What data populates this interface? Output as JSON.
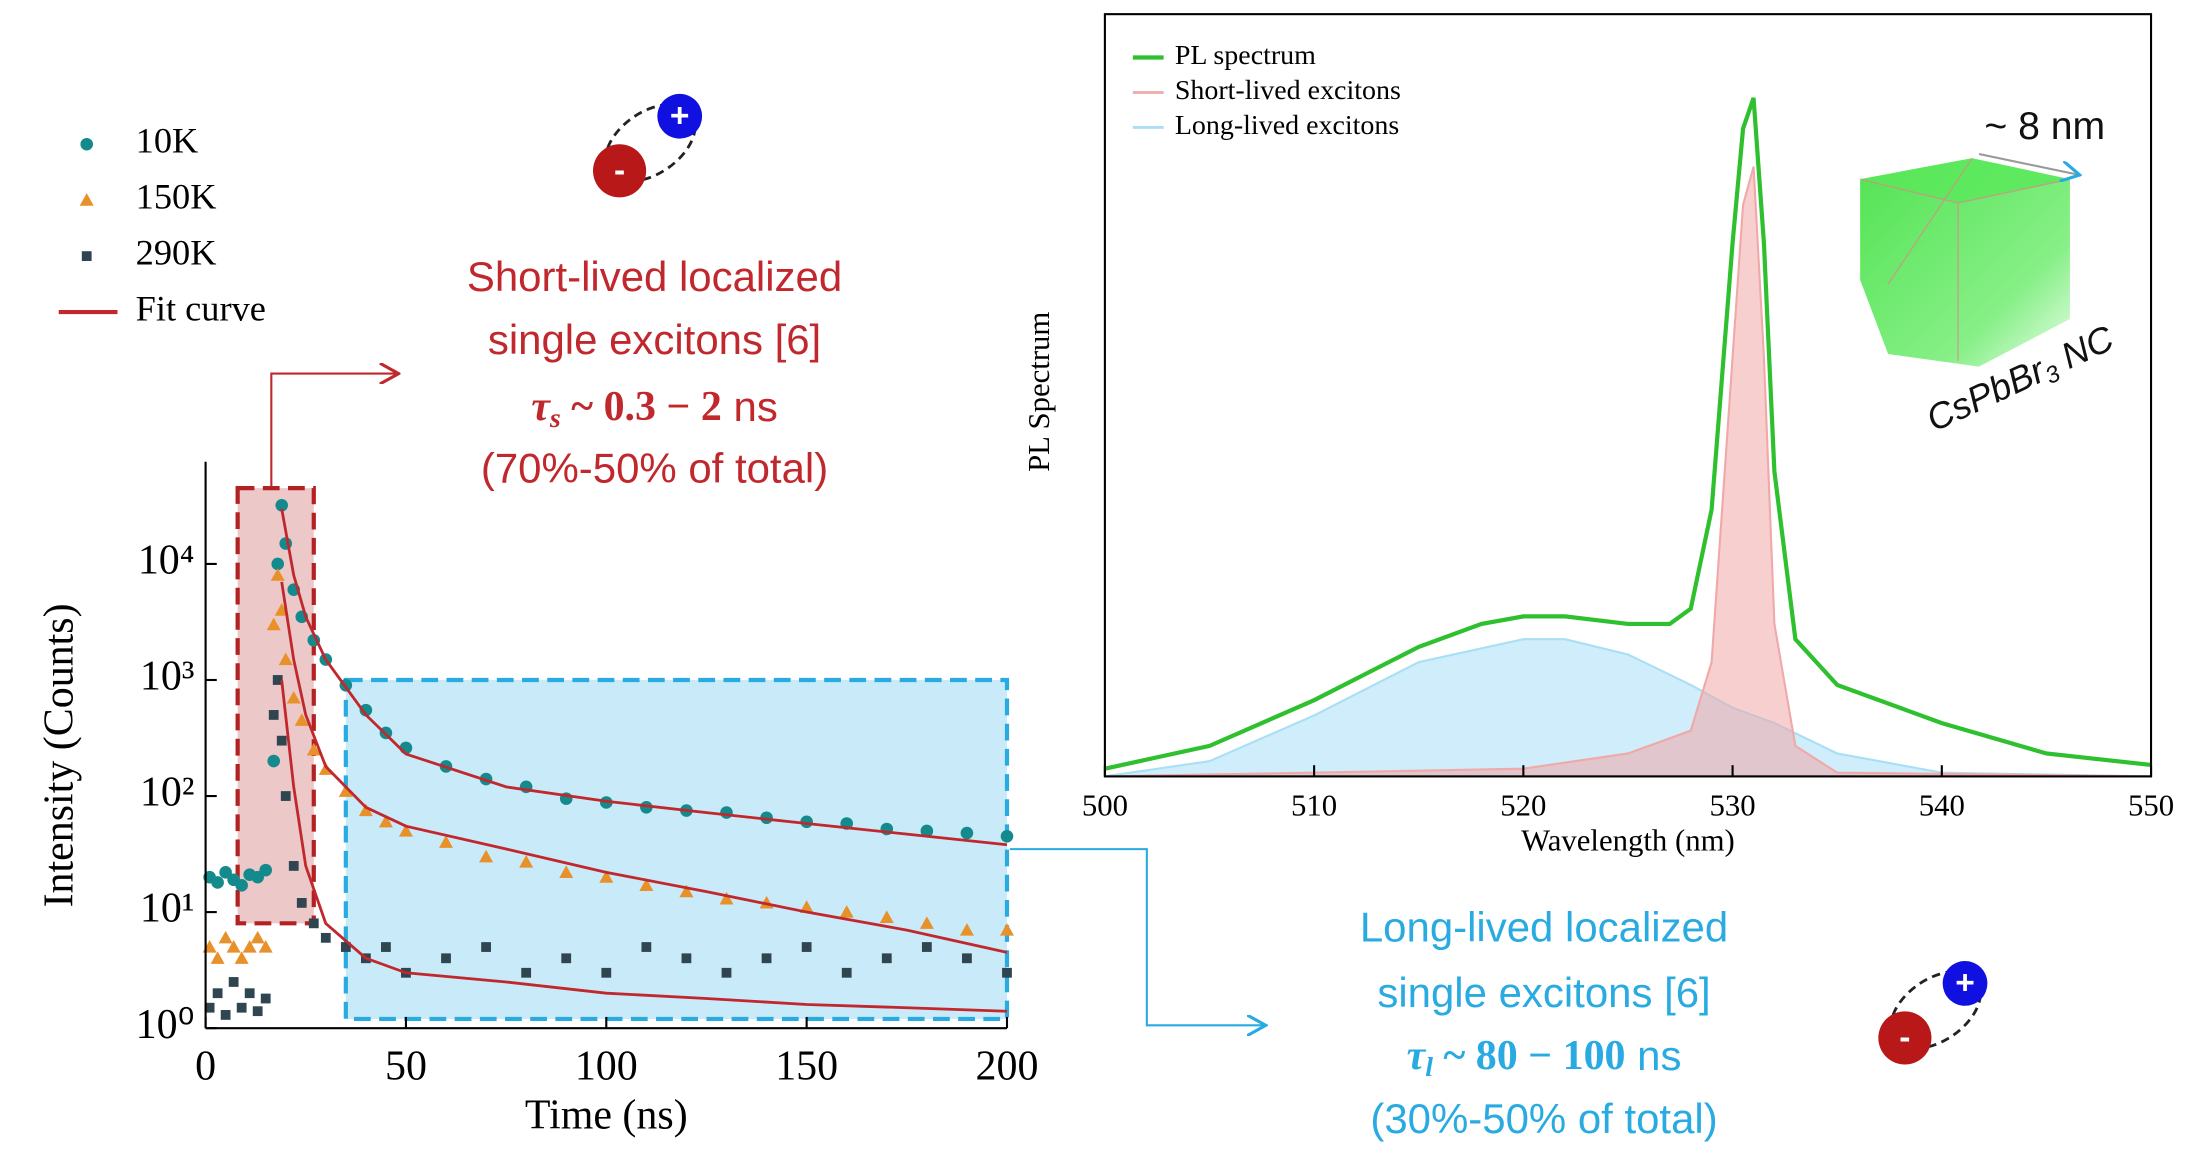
{
  "chart_data": [
    {
      "type": "scatter",
      "xlabel": "Time (ns)",
      "ylabel": "Intensity (Counts)",
      "log_y": true,
      "xlim": [
        0,
        200
      ],
      "xticks": [
        0,
        50,
        100,
        150,
        200
      ],
      "ylim": [
        1,
        76000
      ],
      "yticks": [
        {
          "value": 1,
          "label": "10⁰"
        },
        {
          "value": 10,
          "label": "10¹"
        },
        {
          "value": 100,
          "label": "10²"
        },
        {
          "value": 1000,
          "label": "10³"
        },
        {
          "value": 10000,
          "label": "10⁴"
        }
      ],
      "regions": [
        {
          "x": [
            8,
            27
          ],
          "y": [
            8,
            45000
          ],
          "color": "#b22222"
        },
        {
          "x": [
            35,
            200
          ],
          "y": [
            1.2,
            1000
          ],
          "color": "#29abe2"
        }
      ],
      "series": [
        {
          "name": "10K",
          "marker": "circle",
          "color": "#148a8c",
          "x": [
            1,
            3,
            5,
            7,
            9,
            11,
            13,
            15,
            17,
            18,
            19,
            20,
            22,
            24,
            27,
            30,
            35,
            40,
            45,
            50,
            60,
            70,
            80,
            90,
            100,
            110,
            120,
            130,
            140,
            150,
            160,
            170,
            180,
            190,
            200
          ],
          "values": [
            20,
            18,
            22,
            19,
            17,
            21,
            20,
            23,
            200,
            10000,
            32000,
            15000,
            6000,
            3500,
            2200,
            1500,
            900,
            550,
            350,
            260,
            180,
            140,
            120,
            95,
            88,
            80,
            75,
            72,
            65,
            60,
            58,
            52,
            50,
            48,
            45
          ]
        },
        {
          "name": "150K",
          "marker": "triangle",
          "color": "#e8912a",
          "x": [
            1,
            3,
            5,
            7,
            9,
            11,
            13,
            15,
            17,
            18,
            19,
            20,
            22,
            24,
            27,
            30,
            35,
            40,
            45,
            50,
            60,
            70,
            80,
            90,
            100,
            110,
            120,
            130,
            140,
            150,
            160,
            170,
            180,
            190,
            200
          ],
          "values": [
            5,
            4,
            6,
            5,
            4,
            5,
            6,
            5,
            3000,
            8000,
            4000,
            1500,
            700,
            450,
            250,
            170,
            110,
            75,
            60,
            50,
            40,
            30,
            27,
            22,
            20,
            17,
            15,
            13,
            12,
            11,
            10,
            9,
            8,
            7,
            7
          ]
        },
        {
          "name": "290K",
          "marker": "square",
          "color": "#2f4550",
          "x": [
            1,
            3,
            5,
            7,
            9,
            11,
            13,
            15,
            17,
            18,
            19,
            20,
            22,
            24,
            27,
            30,
            35,
            40,
            45,
            50,
            60,
            70,
            80,
            90,
            100,
            110,
            120,
            130,
            140,
            150,
            160,
            170,
            180,
            190,
            200
          ],
          "values": [
            1.5,
            2,
            1.3,
            2.5,
            1.5,
            2,
            1.4,
            1.8,
            500,
            1000,
            300,
            100,
            25,
            12,
            8,
            6,
            5,
            4,
            5,
            3,
            4,
            5,
            3,
            4,
            3,
            5,
            4,
            3,
            4,
            5,
            3,
            4,
            5,
            4,
            3
          ]
        },
        {
          "name": "Fit curve",
          "marker": "line",
          "color": "#c0282d",
          "x": [
            19,
            22,
            25,
            30,
            40,
            50,
            75,
            100,
            125,
            150,
            175,
            200
          ],
          "curves": [
            [
              30000,
              8000,
              3500,
              1500,
              500,
              230,
              120,
              90,
              72,
              58,
              47,
              38
            ],
            [
              7000,
              1500,
              500,
              180,
              80,
              55,
              35,
              22,
              15,
              10,
              7,
              4.5
            ],
            [
              1000,
              120,
              25,
              8,
              4,
              3,
              2.5,
              2,
              1.8,
              1.6,
              1.5,
              1.4
            ]
          ]
        }
      ]
    },
    {
      "type": "line",
      "xlabel": "Wavelength (nm)",
      "ylabel": "PL Spectrum",
      "xlim": [
        500,
        550
      ],
      "xticks": [
        500,
        510,
        520,
        530,
        540,
        550
      ],
      "ylim": [
        0,
        1
      ],
      "series": [
        {
          "name": "PL spectrum",
          "style": "line",
          "color": "#2ec02e",
          "x": [
            500,
            505,
            510,
            515,
            518,
            520,
            522,
            525,
            527,
            528,
            529,
            530,
            530.5,
            531,
            531.5,
            532,
            533,
            535,
            540,
            545,
            550
          ],
          "values": [
            0.01,
            0.04,
            0.1,
            0.17,
            0.2,
            0.21,
            0.21,
            0.2,
            0.2,
            0.22,
            0.35,
            0.7,
            0.85,
            0.89,
            0.7,
            0.4,
            0.18,
            0.12,
            0.07,
            0.03,
            0.015
          ]
        },
        {
          "name": "Short-lived excitons",
          "style": "area",
          "color": "#f0a8a8",
          "x": [
            500,
            510,
            520,
            525,
            528,
            529,
            530,
            530.5,
            531,
            531.5,
            532,
            533,
            535,
            550
          ],
          "values": [
            0,
            0.005,
            0.01,
            0.03,
            0.06,
            0.15,
            0.55,
            0.75,
            0.8,
            0.55,
            0.2,
            0.04,
            0.005,
            0
          ]
        },
        {
          "name": "Long-lived excitons",
          "style": "area",
          "color": "#a8dff5",
          "x": [
            500,
            505,
            510,
            515,
            520,
            522,
            525,
            528,
            530,
            532,
            535,
            540,
            550
          ],
          "values": [
            0,
            0.02,
            0.08,
            0.15,
            0.18,
            0.18,
            0.16,
            0.12,
            0.09,
            0.07,
            0.03,
            0.005,
            0
          ]
        }
      ]
    }
  ],
  "annotations": {
    "short": {
      "line1": "Short-lived localized",
      "line2": "single excitons [6]",
      "symbol": "τ",
      "sub": "s",
      "formula": " ~ 0.3 − 2",
      "unit": " ns",
      "share": "(70%-50% of total)"
    },
    "long": {
      "line1": "Long-lived localized",
      "line2": "single excitons [6]",
      "symbol": "τ",
      "sub": "l",
      "formula": " ~ 80 − 100",
      "unit": " ns",
      "share": "(30%-50% of total)"
    },
    "size": "~ 8 nm",
    "crystal": {
      "name": "CsPbBr",
      "sub": "3",
      "suffix": " NC"
    },
    "charges": {
      "plus": "+",
      "minus": "-"
    }
  }
}
